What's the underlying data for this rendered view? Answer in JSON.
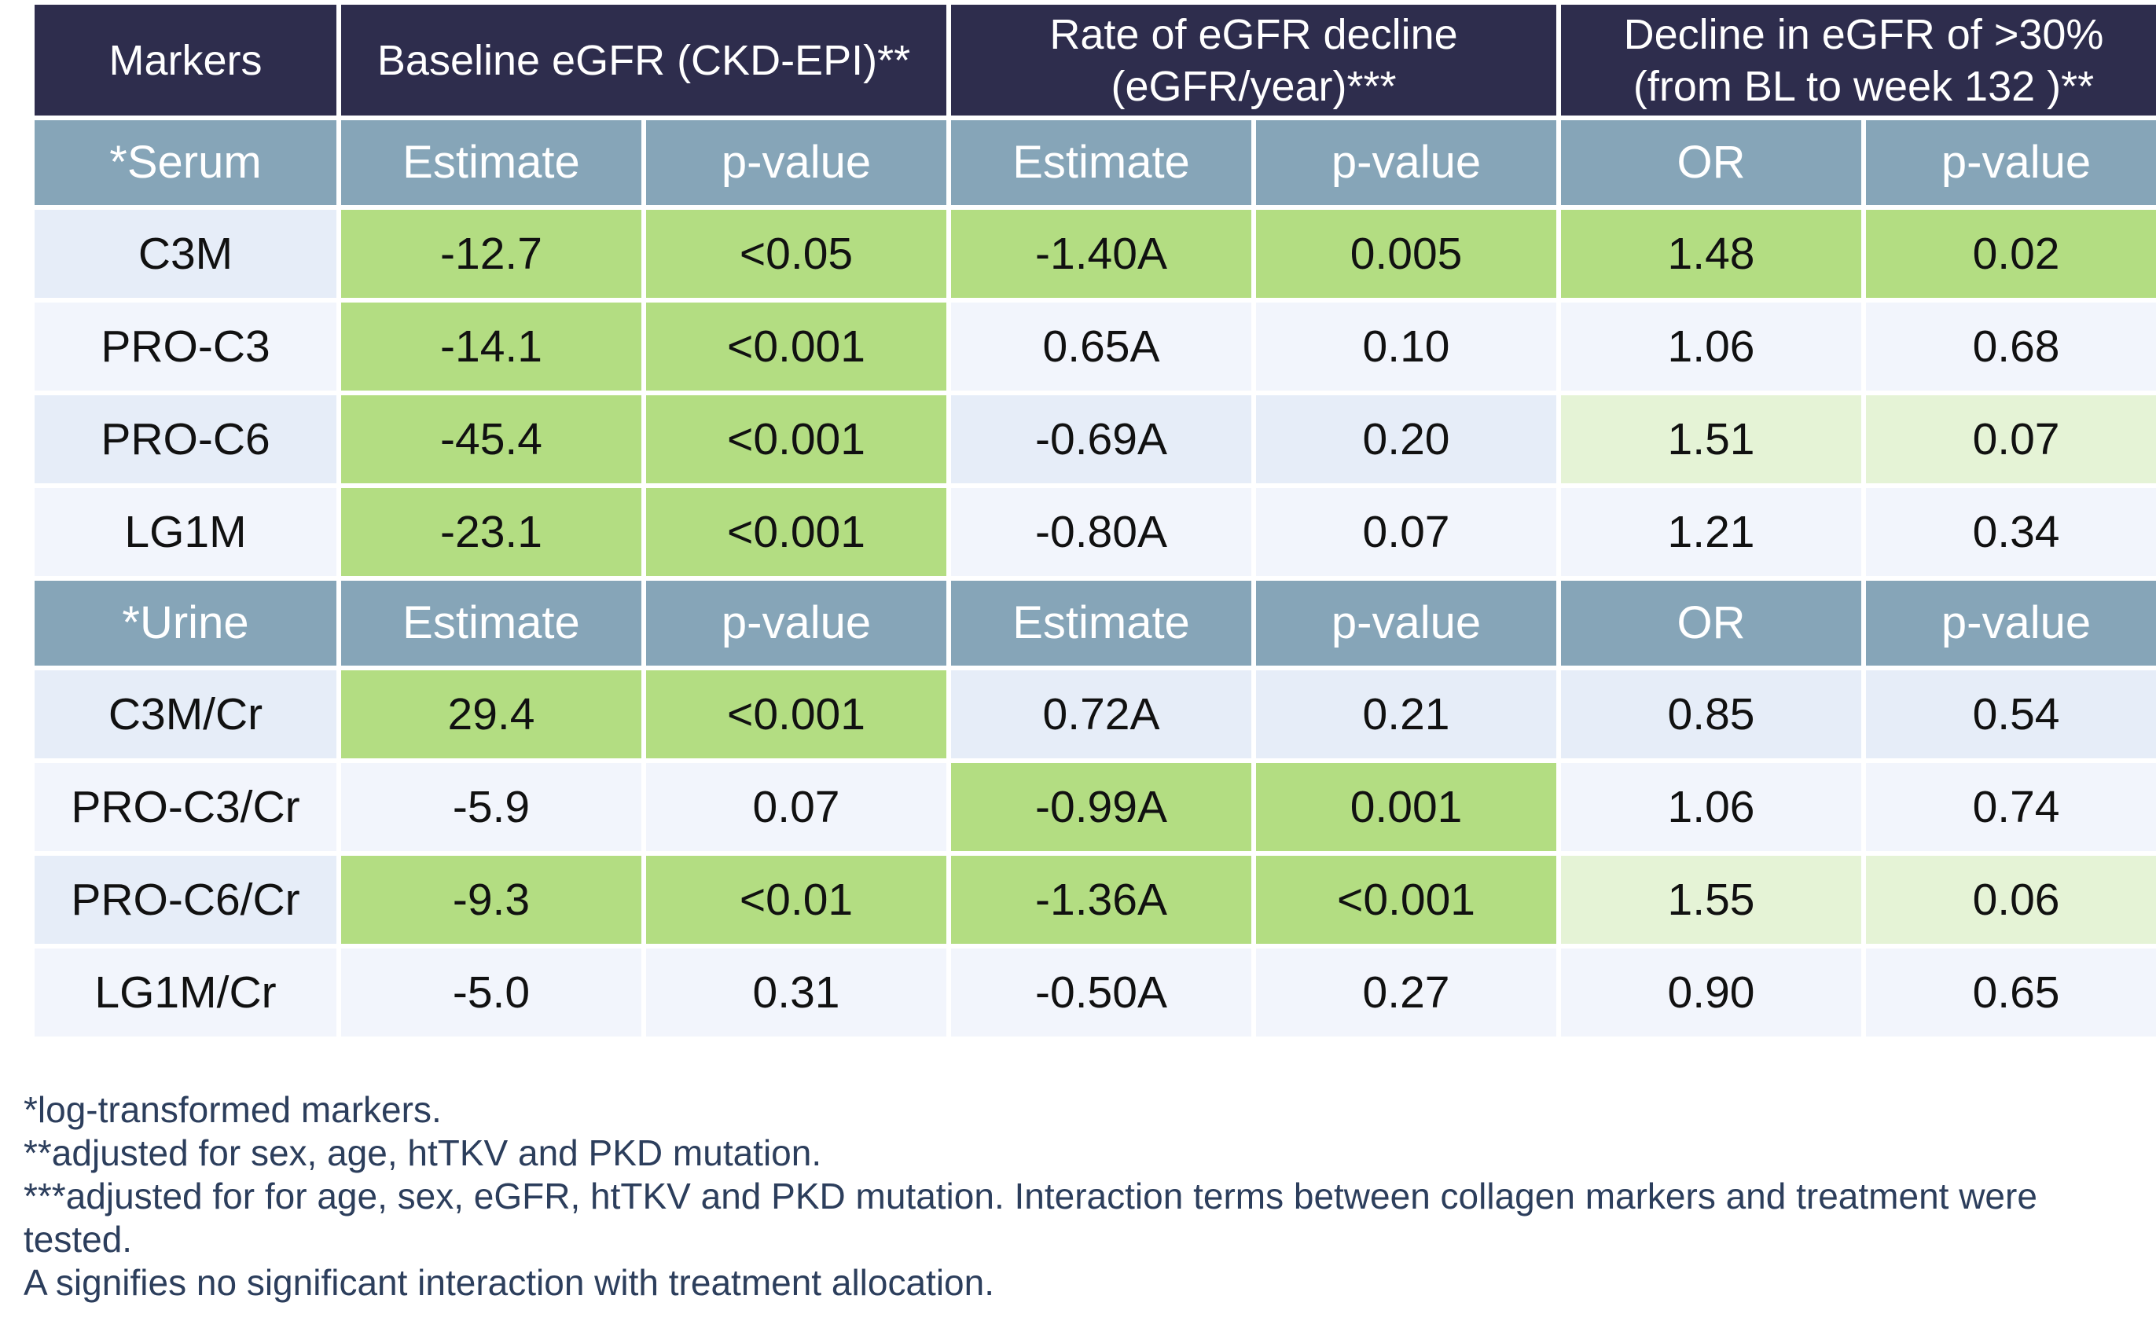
{
  "header": {
    "markers": "Markers",
    "baseline": "Baseline eGFR (CKD-EPI)**",
    "rate": "Rate of eGFR decline (eGFR/year)***",
    "decline": "Decline in eGFR of >30% (from BL to week 132 )**"
  },
  "colors": {
    "header_bg": "#2e2d4d",
    "subheader_bg": "#86a5b8",
    "significant": "#b3dd82",
    "trend": "#e5f3d6",
    "row_a": "#e6edf8",
    "row_b": "#f2f5fc",
    "note_text": "#2c3e5c"
  },
  "serum": {
    "label": "*Serum",
    "cols": [
      "Estimate",
      "p-value",
      "Estimate",
      "p-value",
      "OR",
      "p-value"
    ],
    "rows": [
      {
        "marker": "C3M",
        "cells": [
          "-12.7",
          "<0.05",
          "-1.40A",
          "0.005",
          "1.48",
          "0.02"
        ]
      },
      {
        "marker": "PRO-C3",
        "cells": [
          "-14.1",
          "<0.001",
          "0.65A",
          "0.10",
          "1.06",
          "0.68"
        ]
      },
      {
        "marker": "PRO-C6",
        "cells": [
          "-45.4",
          "<0.001",
          "-0.69A",
          "0.20",
          "1.51",
          "0.07"
        ]
      },
      {
        "marker": "LG1M",
        "cells": [
          "-23.1",
          "<0.001",
          "-0.80A",
          "0.07",
          "1.21",
          "0.34"
        ]
      }
    ]
  },
  "urine": {
    "label": "*Urine",
    "cols": [
      "Estimate",
      "p-value",
      "Estimate",
      "p-value",
      "OR",
      "p-value"
    ],
    "rows": [
      {
        "marker": "C3M/Cr",
        "cells": [
          "29.4",
          "<0.001",
          "0.72A",
          "0.21",
          "0.85",
          "0.54"
        ]
      },
      {
        "marker": "PRO-C3/Cr",
        "cells": [
          "-5.9",
          "0.07",
          "-0.99A",
          "0.001",
          "1.06",
          "0.74"
        ]
      },
      {
        "marker": "PRO-C6/Cr",
        "cells": [
          "-9.3",
          "<0.01",
          "-1.36A",
          "<0.001",
          "1.55",
          "0.06"
        ]
      },
      {
        "marker": "LG1M/Cr",
        "cells": [
          "-5.0",
          "0.31",
          "-0.50A",
          "0.27",
          "0.90",
          "0.65"
        ]
      }
    ]
  },
  "notes": [
    "*log-transformed markers.",
    "**adjusted for sex, age, htTKV and PKD mutation.",
    "***adjusted for for age, sex, eGFR, htTKV and PKD mutation. Interaction terms between collagen markers and treatment were tested.",
    "A signifies no significant interaction with treatment allocation."
  ]
}
